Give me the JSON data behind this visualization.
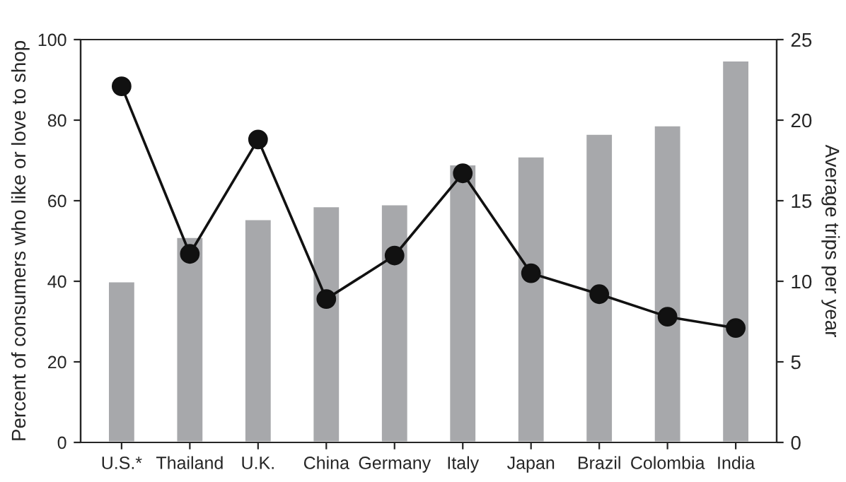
{
  "chart_data": {
    "type": "bar",
    "categories": [
      "U.S.*",
      "Thailand",
      "U.K.",
      "China",
      "Germany",
      "Italy",
      "Japan",
      "Brazil",
      "Colombia",
      "India"
    ],
    "ylabel": "Percent of consumers who like or love to shop",
    "y2label": "Average trips per year",
    "ylim": [
      0,
      100
    ],
    "yticks": [
      0,
      20,
      40,
      60,
      80,
      100
    ],
    "y2lim": [
      0,
      25
    ],
    "y2ticks": [
      0,
      5,
      10,
      15,
      20,
      25
    ],
    "grid": false,
    "series": [
      {
        "color": "#a7a8ab",
        "values": [
          40,
          51,
          55.4,
          58.6,
          59.1,
          69,
          71,
          76.6,
          78.7,
          94.8
        ]
      },
      {
        "type": "line",
        "axis": "y2",
        "color": "#111111",
        "marker": "circle",
        "line_style": "solid",
        "values": [
          22.1,
          11.7,
          18.8,
          8.9,
          11.6,
          16.7,
          10.5,
          9.2,
          7.8,
          7.1
        ]
      }
    ]
  }
}
